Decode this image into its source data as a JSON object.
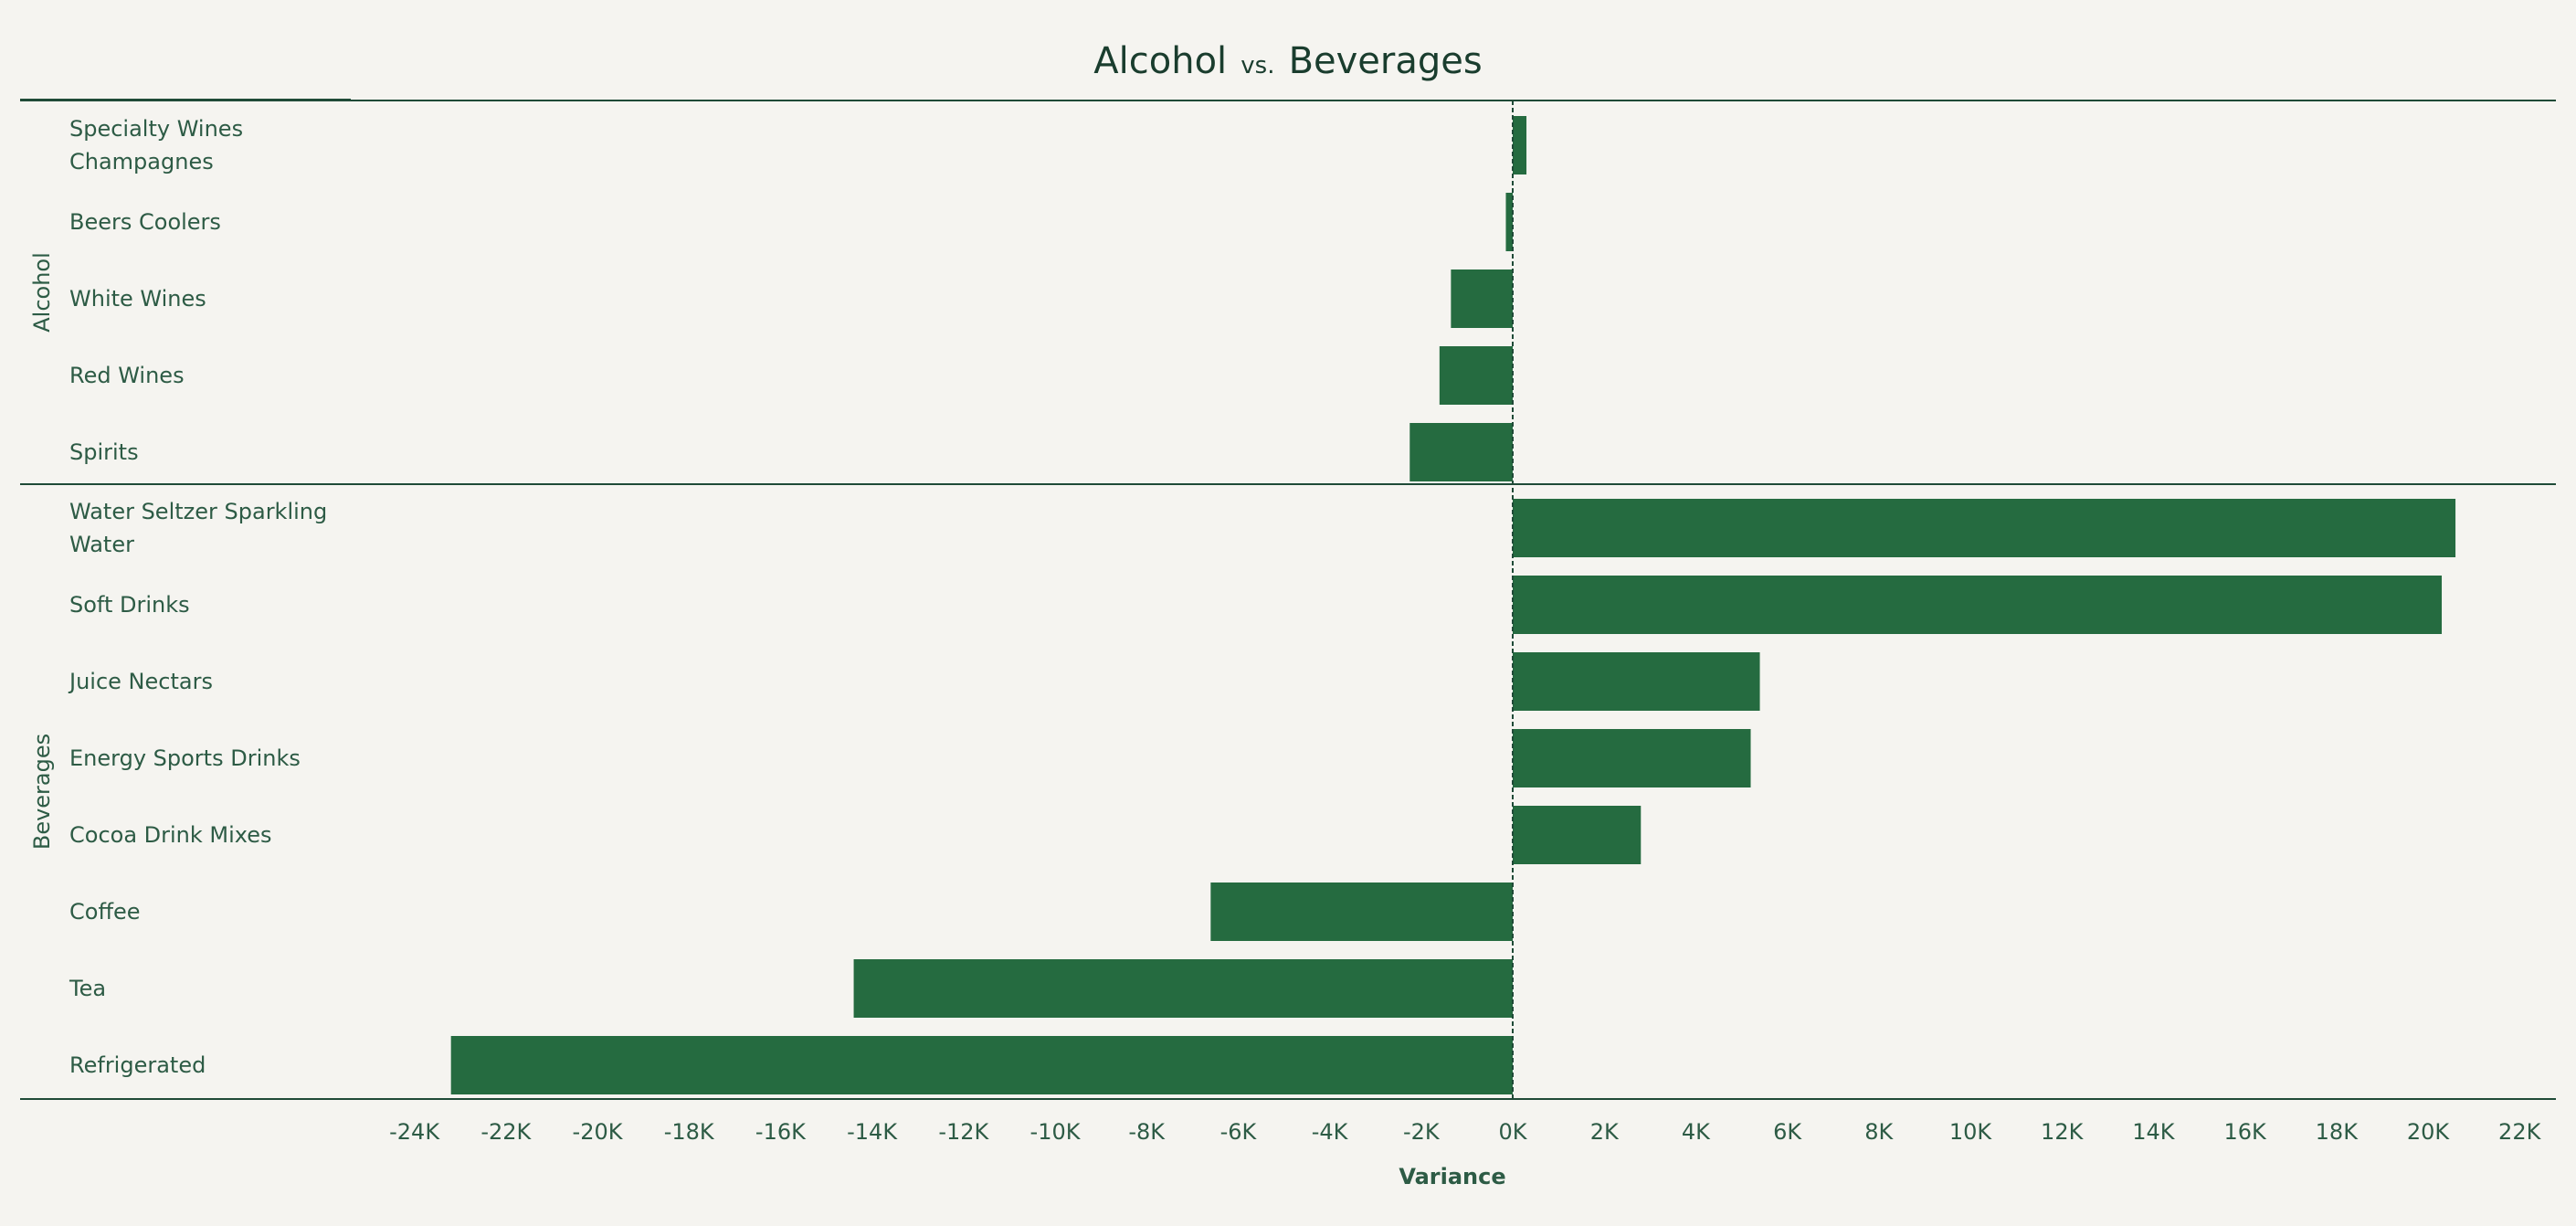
{
  "colors": {
    "background": "#f5f4f0",
    "bar": "#256b40",
    "text": "#2d5b45",
    "title": "#1a3d2e",
    "line": "#1f4a37"
  },
  "chart_data": {
    "type": "bar",
    "orientation": "horizontal",
    "title": {
      "part1": "Alcohol",
      "part2": "vs.",
      "part3": "Beverages"
    },
    "xlabel": "Variance",
    "xlim": [
      -24000,
      22000
    ],
    "x_ticks": [
      "-24K",
      "-22K",
      "-20K",
      "-18K",
      "-16K",
      "-14K",
      "-12K",
      "-10K",
      "-8K",
      "-6K",
      "-4K",
      "-2K",
      "0K",
      "2K",
      "4K",
      "6K",
      "8K",
      "10K",
      "12K",
      "14K",
      "16K",
      "18K",
      "20K",
      "22K"
    ],
    "x_tick_values": [
      -24000,
      -22000,
      -20000,
      -18000,
      -16000,
      -14000,
      -12000,
      -10000,
      -8000,
      -6000,
      -4000,
      -2000,
      0,
      2000,
      4000,
      6000,
      8000,
      10000,
      12000,
      14000,
      16000,
      18000,
      20000,
      22000
    ],
    "groups": [
      {
        "name": "Alcohol",
        "categories": [
          {
            "label": [
              "Specialty Wines",
              "Champagnes"
            ],
            "value": 300
          },
          {
            "label": [
              "Beers Coolers"
            ],
            "value": -150
          },
          {
            "label": [
              "White Wines"
            ],
            "value": -1350
          },
          {
            "label": [
              "Red Wines"
            ],
            "value": -1600
          },
          {
            "label": [
              "Spirits"
            ],
            "value": -2250
          }
        ]
      },
      {
        "name": "Beverages",
        "categories": [
          {
            "label": [
              "Water Seltzer Sparkling",
              "Water"
            ],
            "value": 20600
          },
          {
            "label": [
              "Soft Drinks"
            ],
            "value": 20300
          },
          {
            "label": [
              "Juice Nectars"
            ],
            "value": 5400
          },
          {
            "label": [
              "Energy Sports Drinks"
            ],
            "value": 5200
          },
          {
            "label": [
              "Cocoa Drink Mixes"
            ],
            "value": 2800
          },
          {
            "label": [
              "Coffee"
            ],
            "value": -6600
          },
          {
            "label": [
              "Tea"
            ],
            "value": -14400
          },
          {
            "label": [
              "Refrigerated"
            ],
            "value": -23200
          }
        ]
      }
    ]
  }
}
